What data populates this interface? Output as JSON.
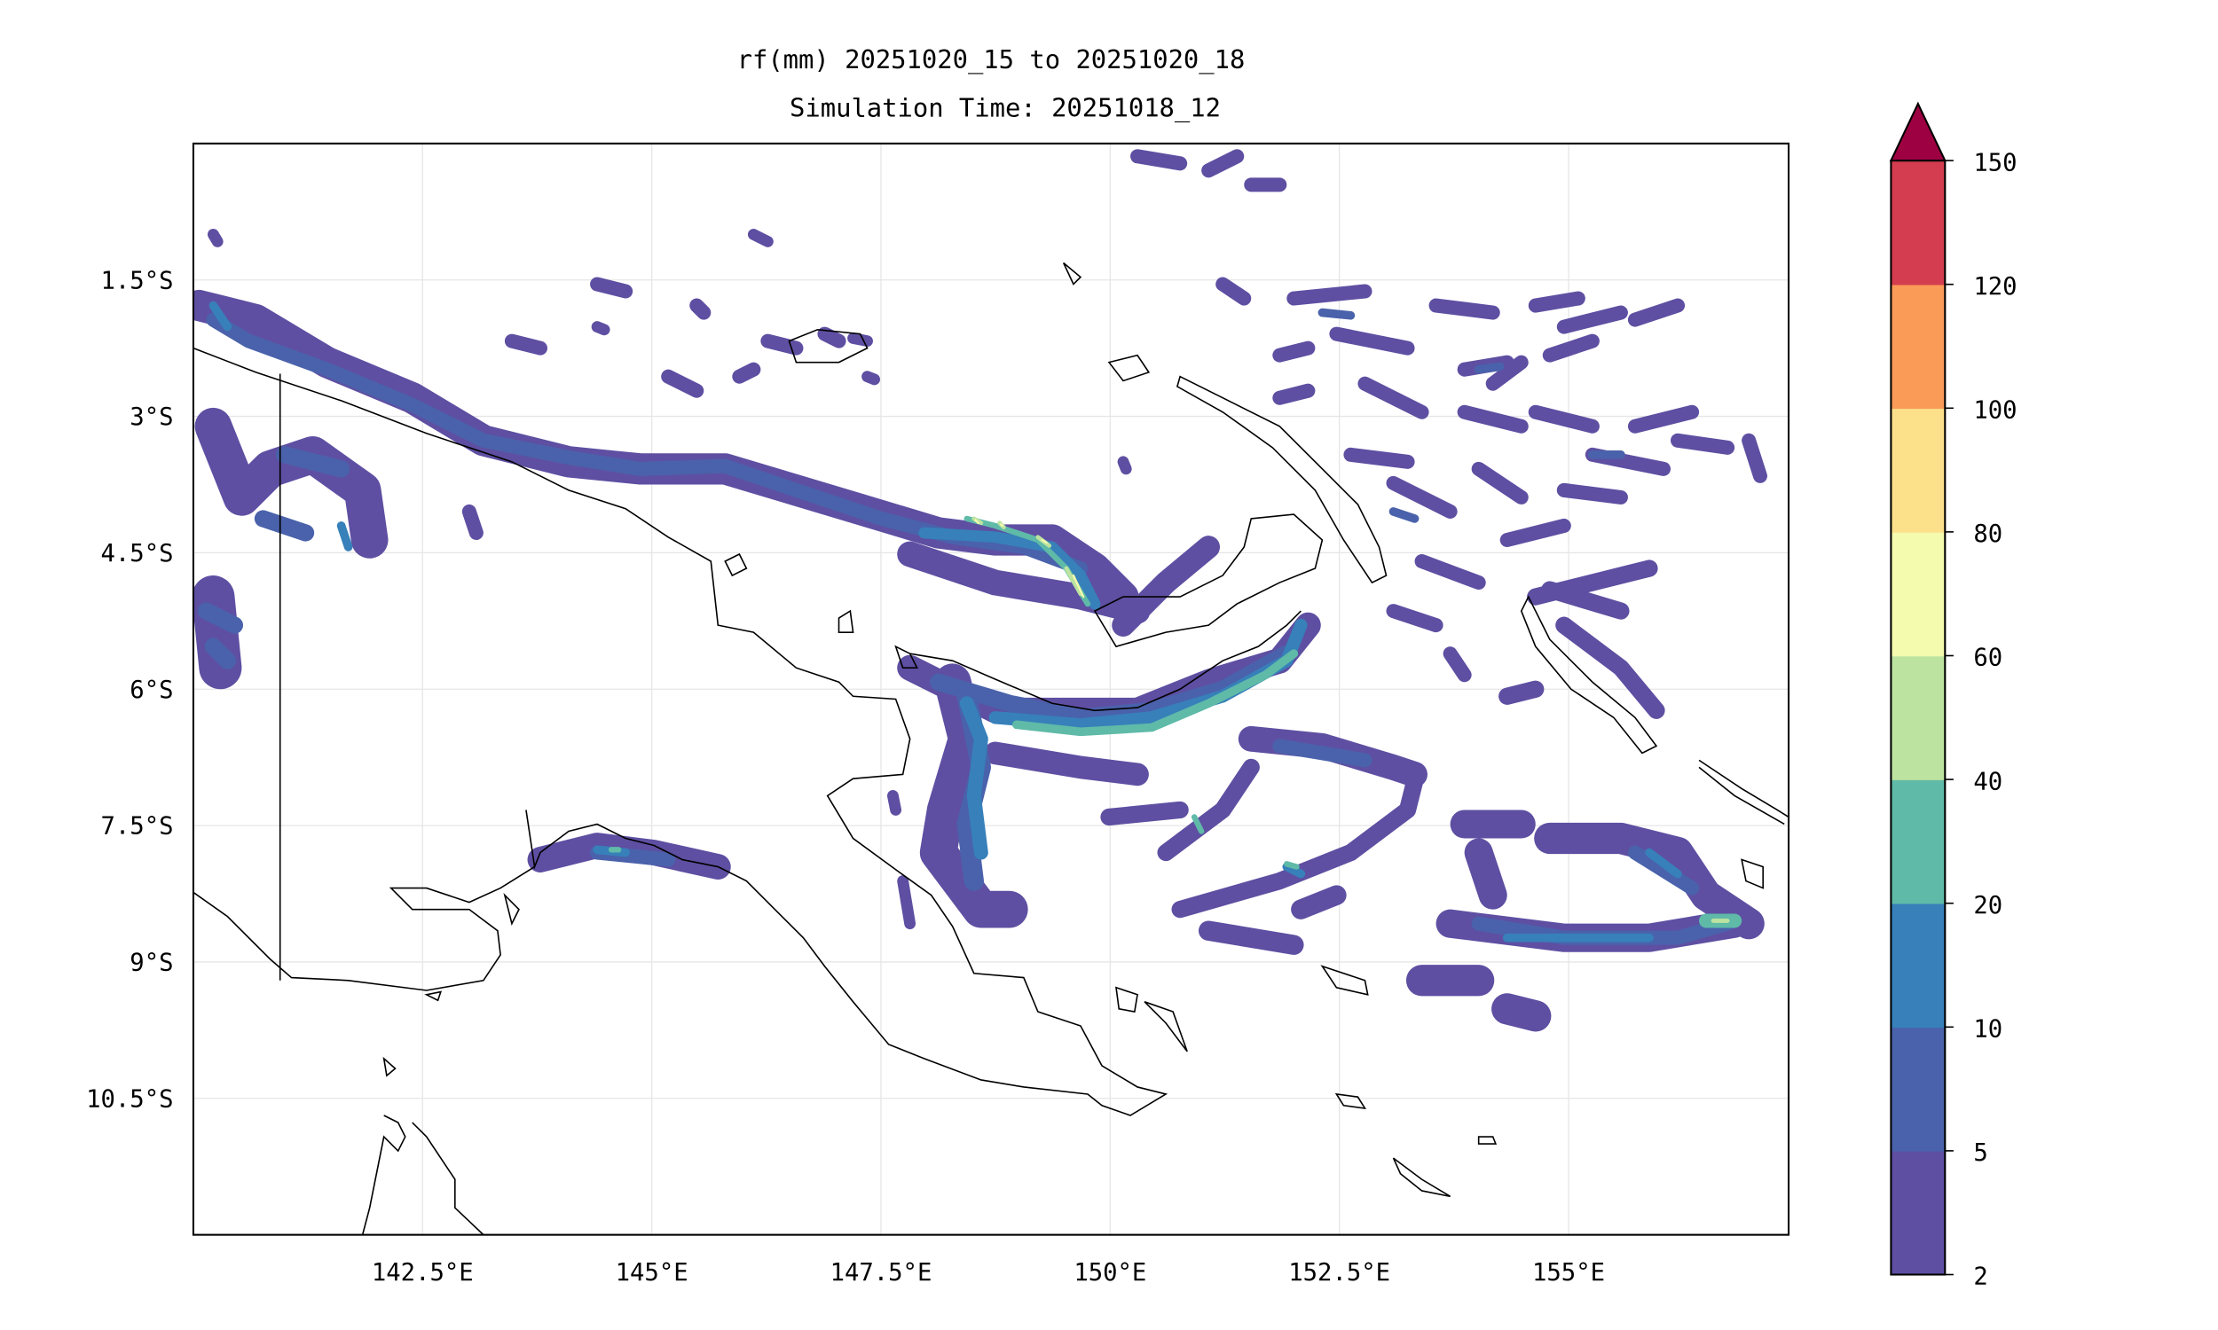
{
  "chart_data": {
    "type": "heatmap",
    "subtype": "filled-contour-map",
    "title": "rf(mm) 20251020_15 to 20251020_18",
    "subtitle": "Simulation Time: 20251018_12",
    "xlim": [
      140.0,
      157.4
    ],
    "ylim": [
      -12.0,
      0.0
    ],
    "x_ticks": [
      142.5,
      145,
      147.5,
      150,
      152.5,
      155
    ],
    "x_tick_labels": [
      "142.5°E",
      "145°E",
      "147.5°E",
      "150°E",
      "152.5°E",
      "155°E"
    ],
    "y_ticks": [
      -1.5,
      -3,
      -4.5,
      -6,
      -7.5,
      -9,
      -10.5
    ],
    "y_tick_labels": [
      "1.5°S",
      "3°S",
      "4.5°S",
      "6°S",
      "7.5°S",
      "9°S",
      "10.5°S"
    ],
    "grid": true,
    "colorbar": {
      "placement": "right",
      "extend": "max",
      "levels": [
        2,
        5,
        10,
        20,
        40,
        60,
        80,
        100,
        120,
        150
      ],
      "tick_labels": [
        "2",
        "5",
        "10",
        "20",
        "40",
        "60",
        "80",
        "100",
        "120",
        "150"
      ],
      "colors": [
        "#5e4fa2",
        "#4a62ab",
        "#3780b9",
        "#5fbaa8",
        "#bce3a0",
        "#f4faae",
        "#fde08a",
        "#fa9b58",
        "#d43d4f",
        "#9e0142"
      ]
    }
  }
}
